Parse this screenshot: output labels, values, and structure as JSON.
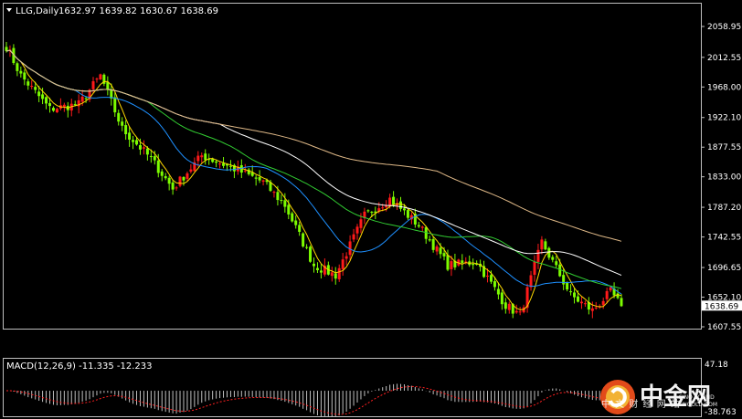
{
  "main": {
    "symbol_info": "LLG,Daily",
    "ohlc": "1632.97 1639.82 1630.67 1638.69",
    "price_ticks": [
      "2058.95",
      "2012.55",
      "1968.00",
      "1922.10",
      "1877.55",
      "1833.00",
      "1787.20",
      "1742.55",
      "1696.65",
      "1652.10",
      "1607.55"
    ],
    "current_price_label": "1638.69"
  },
  "macd_panel": {
    "label": "MACD(12,26,9) -11.335 -12.233",
    "ticks": [
      "47.18",
      "-38.763"
    ]
  },
  "watermark": {
    "brand": "中金网",
    "subtitle": "中 文 财 经 网 站",
    "sub2": "CNGOLD.COM",
    "sub3": "SINO SOUND"
  },
  "colors": {
    "bull": "#ff1a1a",
    "bear": "#7cfc00",
    "ma5": "#ffd700",
    "ma20": "#1e90ff",
    "ma40": "#32cd32",
    "ma60": "#ffffff",
    "ma120": "#deb887",
    "grid_axis": "#bfbfbf",
    "macd_hist": "#bfbfbf",
    "macd_signal": "#ff2020"
  },
  "chart_data": {
    "type": "candlestick",
    "price_range": [
      1607.55,
      2058.95
    ],
    "last_close": 1638.69,
    "segments": [
      {
        "bars": 5,
        "from": 2040,
        "to": 1985
      },
      {
        "bars": 8,
        "from": 1985,
        "to": 1935
      },
      {
        "bars": 8,
        "from": 1935,
        "to": 1942
      },
      {
        "bars": 6,
        "from": 1942,
        "to": 1985
      },
      {
        "bars": 6,
        "from": 1985,
        "to": 1905
      },
      {
        "bars": 8,
        "from": 1905,
        "to": 1860
      },
      {
        "bars": 6,
        "from": 1860,
        "to": 1815
      },
      {
        "bars": 8,
        "from": 1815,
        "to": 1865
      },
      {
        "bars": 9,
        "from": 1865,
        "to": 1845
      },
      {
        "bars": 8,
        "from": 1845,
        "to": 1825
      },
      {
        "bars": 6,
        "from": 1825,
        "to": 1790
      },
      {
        "bars": 8,
        "from": 1790,
        "to": 1700
      },
      {
        "bars": 6,
        "from": 1700,
        "to": 1685
      },
      {
        "bars": 8,
        "from": 1685,
        "to": 1775
      },
      {
        "bars": 7,
        "from": 1775,
        "to": 1800
      },
      {
        "bars": 8,
        "from": 1800,
        "to": 1760
      },
      {
        "bars": 8,
        "from": 1760,
        "to": 1700
      },
      {
        "bars": 8,
        "from": 1700,
        "to": 1705
      },
      {
        "bars": 8,
        "from": 1705,
        "to": 1640
      },
      {
        "bars": 4,
        "from": 1640,
        "to": 1625
      },
      {
        "bars": 6,
        "from": 1625,
        "to": 1735
      },
      {
        "bars": 8,
        "from": 1735,
        "to": 1655
      },
      {
        "bars": 6,
        "from": 1655,
        "to": 1632
      },
      {
        "bars": 5,
        "from": 1632,
        "to": 1660
      },
      {
        "bars": 3,
        "from": 1660,
        "to": 1638.69
      }
    ],
    "moving_averages": [
      {
        "period": 5,
        "color": "#ffd700"
      },
      {
        "period": 20,
        "color": "#1e90ff"
      },
      {
        "period": 40,
        "color": "#32cd32"
      },
      {
        "period": 60,
        "color": "#ffffff"
      },
      {
        "period": 120,
        "color": "#deb887"
      }
    ],
    "macd": {
      "fast": 12,
      "slow": 26,
      "signal": 9,
      "macd_value": -11.335,
      "signal_value": -12.233,
      "range": [
        -38.763,
        47.18
      ]
    }
  }
}
